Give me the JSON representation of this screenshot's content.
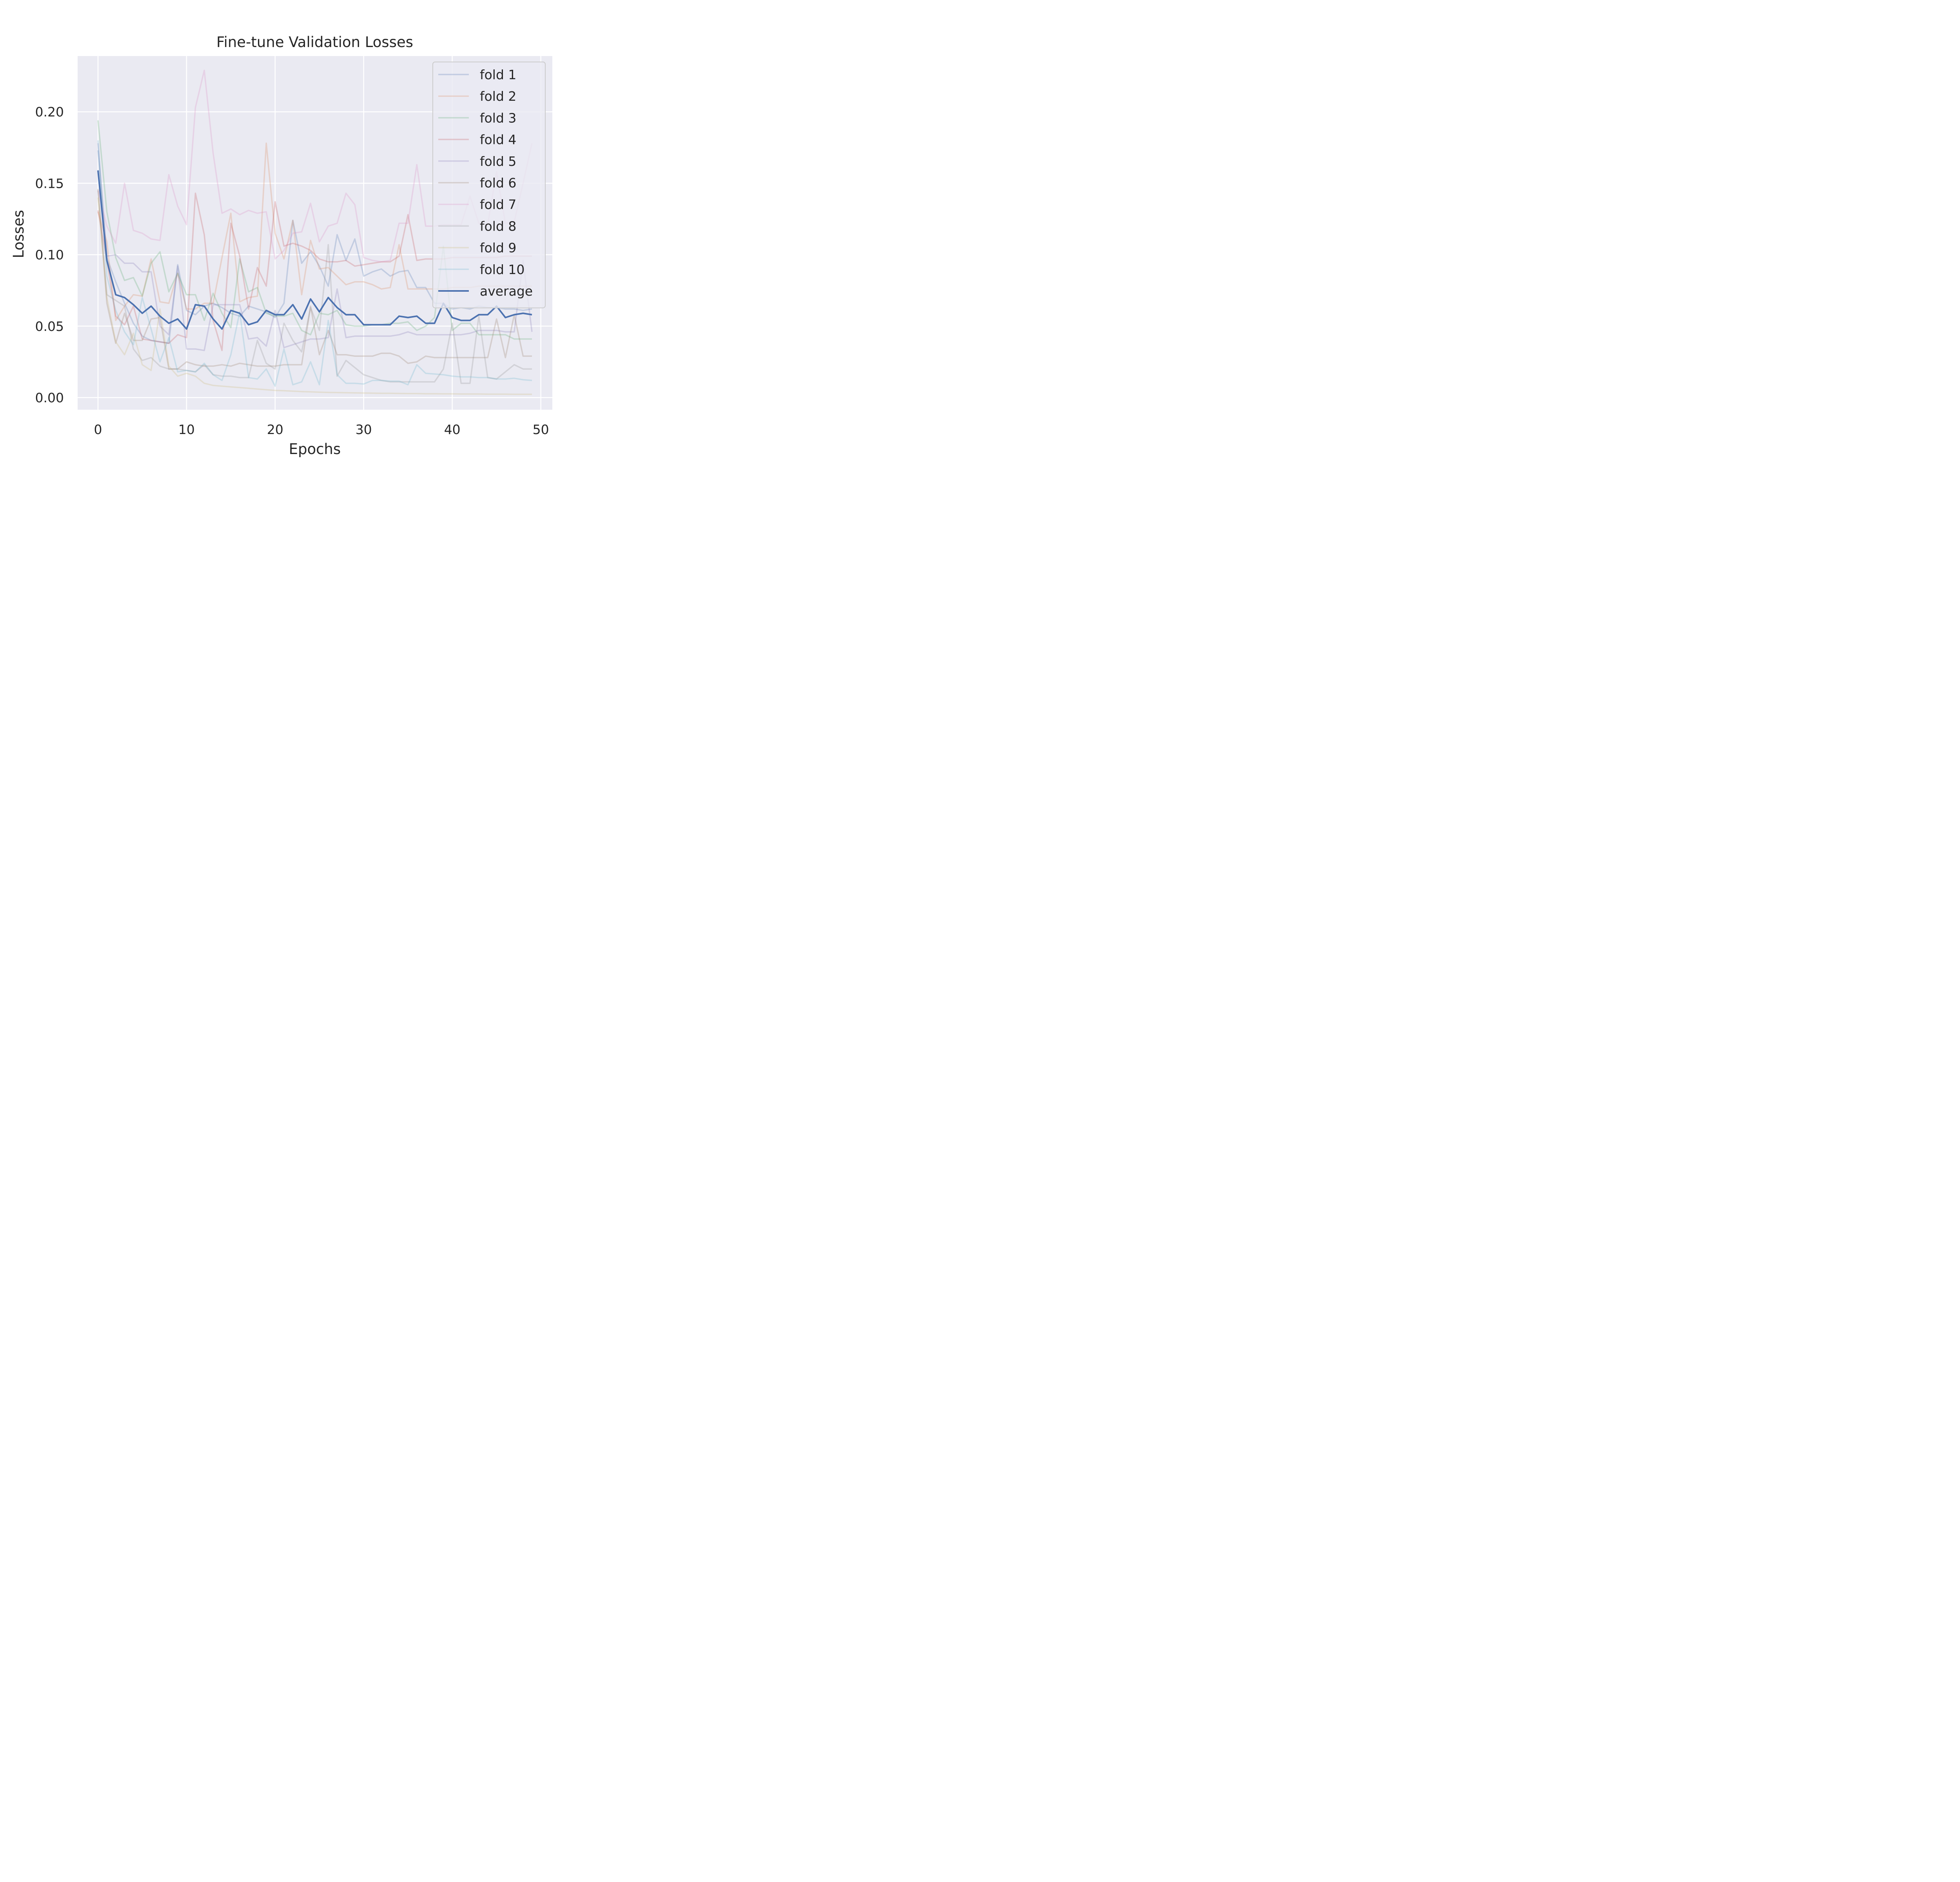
{
  "chart_data": {
    "type": "line",
    "title": "Fine-tune Validation Losses",
    "xlabel": "Epochs",
    "ylabel": "Losses",
    "xlim": [
      -2.3,
      51.3
    ],
    "ylim": [
      -0.0085,
      0.239
    ],
    "xticks": [
      0,
      10,
      20,
      30,
      40,
      50
    ],
    "xtick_labels": [
      "0",
      "10",
      "20",
      "30",
      "40",
      "50"
    ],
    "yticks": [
      0.0,
      0.05,
      0.1,
      0.15,
      0.2
    ],
    "ytick_labels": [
      "0.00",
      "0.05",
      "0.10",
      "0.15",
      "0.20"
    ],
    "grid": true,
    "legend_position": "top-right",
    "x": [
      0,
      1,
      2,
      3,
      4,
      5,
      6,
      7,
      8,
      9,
      10,
      11,
      12,
      13,
      14,
      15,
      16,
      17,
      18,
      19,
      20,
      21,
      22,
      23,
      24,
      25,
      26,
      27,
      28,
      29,
      30,
      31,
      32,
      33,
      34,
      35,
      36,
      37,
      38,
      39,
      40,
      41,
      42,
      43,
      44,
      45,
      46,
      47,
      48,
      49
    ],
    "series": [
      {
        "name": "fold 1",
        "color": "#4c72b0",
        "opacity": 0.25,
        "values": [
          0.173,
          0.098,
          0.081,
          0.066,
          0.052,
          0.043,
          0.04,
          0.039,
          0.038,
          0.093,
          0.061,
          0.058,
          0.064,
          0.066,
          0.063,
          0.059,
          0.057,
          0.064,
          0.062,
          0.06,
          0.056,
          0.066,
          0.124,
          0.094,
          0.102,
          0.092,
          0.078,
          0.114,
          0.096,
          0.111,
          0.085,
          0.088,
          0.09,
          0.085,
          0.088,
          0.089,
          0.077,
          0.077,
          0.066,
          0.066,
          0.062,
          0.063,
          0.062,
          0.064,
          0.063,
          0.063,
          0.062,
          0.062,
          0.061,
          0.062
        ]
      },
      {
        "name": "fold 2",
        "color": "#dd8452",
        "opacity": 0.25,
        "values": [
          0.13,
          0.109,
          0.054,
          0.064,
          0.072,
          0.071,
          0.097,
          0.067,
          0.066,
          0.087,
          0.062,
          0.062,
          0.066,
          0.066,
          0.098,
          0.129,
          0.067,
          0.07,
          0.071,
          0.178,
          0.115,
          0.097,
          0.124,
          0.072,
          0.11,
          0.09,
          0.091,
          0.085,
          0.079,
          0.081,
          0.081,
          0.079,
          0.076,
          0.077,
          0.107,
          0.076,
          0.076,
          0.076,
          0.076,
          0.076,
          0.077,
          0.077,
          0.077,
          0.078,
          0.078,
          0.078,
          0.078,
          0.078,
          0.078,
          0.078
        ]
      },
      {
        "name": "fold 3",
        "color": "#55a868",
        "opacity": 0.25,
        "values": [
          0.194,
          0.13,
          0.098,
          0.082,
          0.084,
          0.071,
          0.094,
          0.102,
          0.074,
          0.087,
          0.072,
          0.072,
          0.054,
          0.073,
          0.059,
          0.049,
          0.097,
          0.074,
          0.077,
          0.059,
          0.057,
          0.057,
          0.059,
          0.047,
          0.044,
          0.059,
          0.058,
          0.061,
          0.051,
          0.05,
          0.05,
          0.051,
          0.051,
          0.052,
          0.052,
          0.053,
          0.047,
          0.05,
          0.056,
          0.106,
          0.047,
          0.052,
          0.052,
          0.044,
          0.044,
          0.044,
          0.044,
          0.041,
          0.041,
          0.041
        ]
      },
      {
        "name": "fold 4",
        "color": "#c44e52",
        "opacity": 0.25,
        "values": [
          0.131,
          0.096,
          0.057,
          0.051,
          0.064,
          0.041,
          0.04,
          0.039,
          0.038,
          0.044,
          0.042,
          0.143,
          0.114,
          0.054,
          0.033,
          0.122,
          0.099,
          0.062,
          0.091,
          0.078,
          0.137,
          0.106,
          0.108,
          0.106,
          0.103,
          0.097,
          0.095,
          0.095,
          0.096,
          0.092,
          0.093,
          0.094,
          0.095,
          0.095,
          0.099,
          0.128,
          0.096,
          0.097,
          0.097,
          0.097,
          0.098,
          0.098,
          0.098,
          0.098,
          0.098,
          0.098,
          0.099,
          0.099,
          0.099,
          0.099
        ]
      },
      {
        "name": "fold 5",
        "color": "#8172b3",
        "opacity": 0.25,
        "values": [
          0.178,
          0.099,
          0.1,
          0.094,
          0.094,
          0.088,
          0.088,
          0.05,
          0.044,
          0.092,
          0.034,
          0.034,
          0.033,
          0.065,
          0.065,
          0.065,
          0.065,
          0.041,
          0.042,
          0.036,
          0.061,
          0.035,
          0.037,
          0.039,
          0.041,
          0.041,
          0.042,
          0.076,
          0.042,
          0.043,
          0.043,
          0.043,
          0.043,
          0.043,
          0.044,
          0.046,
          0.044,
          0.044,
          0.044,
          0.044,
          0.044,
          0.044,
          0.045,
          0.047,
          0.047,
          0.047,
          0.046,
          0.046,
          0.096,
          0.046
        ]
      },
      {
        "name": "fold 6",
        "color": "#937860",
        "opacity": 0.25,
        "values": [
          0.146,
          0.066,
          0.038,
          0.059,
          0.04,
          0.04,
          0.055,
          0.056,
          0.02,
          0.02,
          0.025,
          0.023,
          0.022,
          0.022,
          0.023,
          0.022,
          0.024,
          0.023,
          0.022,
          0.022,
          0.022,
          0.023,
          0.023,
          0.023,
          0.064,
          0.03,
          0.047,
          0.03,
          0.03,
          0.029,
          0.029,
          0.029,
          0.031,
          0.031,
          0.029,
          0.024,
          0.025,
          0.029,
          0.028,
          0.028,
          0.028,
          0.028,
          0.028,
          0.028,
          0.028,
          0.055,
          0.028,
          0.058,
          0.029,
          0.029
        ]
      },
      {
        "name": "fold 7",
        "color": "#da8bc3",
        "opacity": 0.25,
        "values": [
          0.145,
          0.12,
          0.108,
          0.15,
          0.117,
          0.115,
          0.111,
          0.11,
          0.156,
          0.134,
          0.121,
          0.203,
          0.229,
          0.171,
          0.129,
          0.132,
          0.128,
          0.131,
          0.129,
          0.13,
          0.097,
          0.103,
          0.115,
          0.116,
          0.136,
          0.109,
          0.12,
          0.122,
          0.143,
          0.135,
          0.098,
          0.096,
          0.095,
          0.096,
          0.122,
          0.122,
          0.163,
          0.12,
          0.12,
          0.121,
          0.121,
          0.121,
          0.141,
          0.122,
          0.121,
          0.158,
          0.122,
          0.123,
          0.15,
          0.178
        ]
      },
      {
        "name": "fold 8",
        "color": "#8c8c8c",
        "opacity": 0.25,
        "values": [
          0.145,
          0.072,
          0.068,
          0.064,
          0.034,
          0.026,
          0.028,
          0.022,
          0.02,
          0.02,
          0.019,
          0.018,
          0.023,
          0.016,
          0.015,
          0.015,
          0.014,
          0.014,
          0.04,
          0.024,
          0.02,
          0.052,
          0.04,
          0.032,
          0.063,
          0.047,
          0.107,
          0.015,
          0.026,
          0.021,
          0.016,
          0.014,
          0.012,
          0.011,
          0.011,
          0.011,
          0.011,
          0.011,
          0.011,
          0.02,
          0.052,
          0.01,
          0.01,
          0.057,
          0.014,
          0.013,
          0.018,
          0.023,
          0.02,
          0.02
        ]
      },
      {
        "name": "fold 9",
        "color": "#ccb974",
        "opacity": 0.25,
        "values": [
          0.14,
          0.07,
          0.039,
          0.03,
          0.045,
          0.023,
          0.019,
          0.062,
          0.022,
          0.015,
          0.017,
          0.015,
          0.01,
          0.0085,
          0.008,
          0.0075,
          0.007,
          0.0065,
          0.006,
          0.0055,
          0.005,
          0.0048,
          0.0045,
          0.0042,
          0.004,
          0.0038,
          0.0036,
          0.0035,
          0.0034,
          0.0033,
          0.0032,
          0.0031,
          0.003,
          0.003,
          0.0029,
          0.0028,
          0.0028,
          0.0027,
          0.0027,
          0.0026,
          0.0026,
          0.0025,
          0.0025,
          0.0025,
          0.0024,
          0.0024,
          0.0024,
          0.0023,
          0.0023,
          0.0023
        ]
      },
      {
        "name": "fold 10",
        "color": "#64b5cd",
        "opacity": 0.25,
        "values": [
          0.18,
          0.085,
          0.061,
          0.046,
          0.037,
          0.07,
          0.048,
          0.025,
          0.042,
          0.018,
          0.019,
          0.018,
          0.024,
          0.016,
          0.012,
          0.03,
          0.06,
          0.014,
          0.013,
          0.02,
          0.008,
          0.034,
          0.009,
          0.011,
          0.025,
          0.009,
          0.054,
          0.016,
          0.01,
          0.01,
          0.0095,
          0.012,
          0.012,
          0.0115,
          0.0115,
          0.009,
          0.023,
          0.017,
          0.0165,
          0.016,
          0.015,
          0.0145,
          0.0145,
          0.014,
          0.014,
          0.013,
          0.013,
          0.0135,
          0.0125,
          0.012
        ]
      },
      {
        "name": "average",
        "color": "#4c72b0",
        "opacity": 1.0,
        "values": [
          0.159,
          0.096,
          0.072,
          0.07,
          0.065,
          0.059,
          0.064,
          0.057,
          0.052,
          0.055,
          0.048,
          0.065,
          0.064,
          0.055,
          0.048,
          0.061,
          0.059,
          0.051,
          0.053,
          0.061,
          0.058,
          0.058,
          0.065,
          0.055,
          0.069,
          0.06,
          0.07,
          0.063,
          0.058,
          0.058,
          0.051,
          0.051,
          0.051,
          0.051,
          0.057,
          0.056,
          0.057,
          0.052,
          0.052,
          0.066,
          0.056,
          0.054,
          0.054,
          0.058,
          0.058,
          0.064,
          0.056,
          0.058,
          0.059,
          0.058
        ]
      }
    ]
  }
}
